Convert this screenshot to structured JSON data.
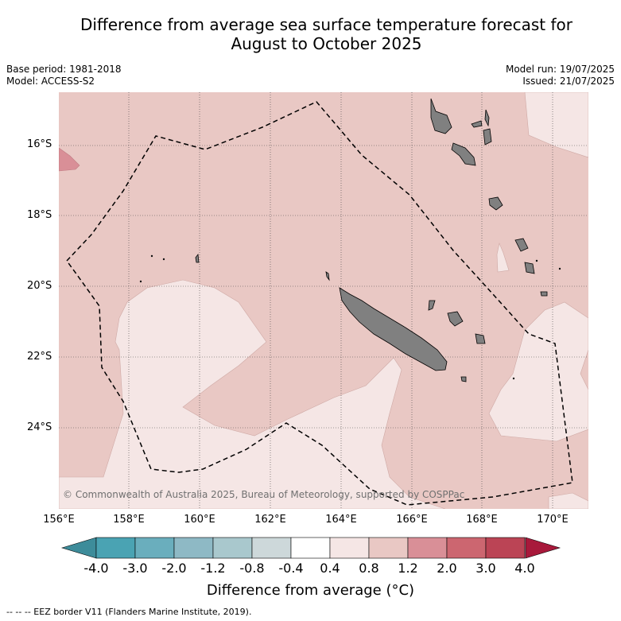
{
  "title_line1": "Difference from average sea surface temperature forecast for",
  "title_line2": "August to October 2025",
  "base_period": "Base period: 1981-2018",
  "model": "Model: ACCESS-S2",
  "model_run": "Model run: 19/07/2025",
  "issued": "Issued: 21/07/2025",
  "copyright": "© Commonwealth of Australia 2025, Bureau of Meteorology, supported by COSPPac",
  "y_ticks": [
    "16°S",
    "18°S",
    "20°S",
    "22°S",
    "24°S"
  ],
  "x_ticks": [
    "156°E",
    "158°E",
    "160°E",
    "162°E",
    "164°E",
    "166°E",
    "168°E",
    "170°E"
  ],
  "colorbar": {
    "labels": [
      "-4.0",
      "-3.0",
      "-2.0",
      "-1.2",
      "-0.8",
      "-0.4",
      "0.4",
      "0.8",
      "1.2",
      "2.0",
      "3.0",
      "4.0"
    ],
    "colors": [
      "#3d8c9a",
      "#4aa3b3",
      "#6aaebd",
      "#8eb9c5",
      "#a9c8cd",
      "#cdd8da",
      "#ffffff",
      "#f5e6e5",
      "#e9c8c4",
      "#d98f97",
      "#cc6670",
      "#bb4455",
      "#a8193b"
    ],
    "title": "Difference from average (°C)"
  },
  "footnote": "--  --  -- EEZ border V11 (Flanders Marine Institute, 2019).",
  "colors": {
    "anomaly_0_4_to_0_8": "#f5e6e5",
    "anomaly_0_8_to_1_2": "#e9c8c4",
    "anomaly_1_2_to_2_0": "#d98f97",
    "land": "#808080"
  }
}
